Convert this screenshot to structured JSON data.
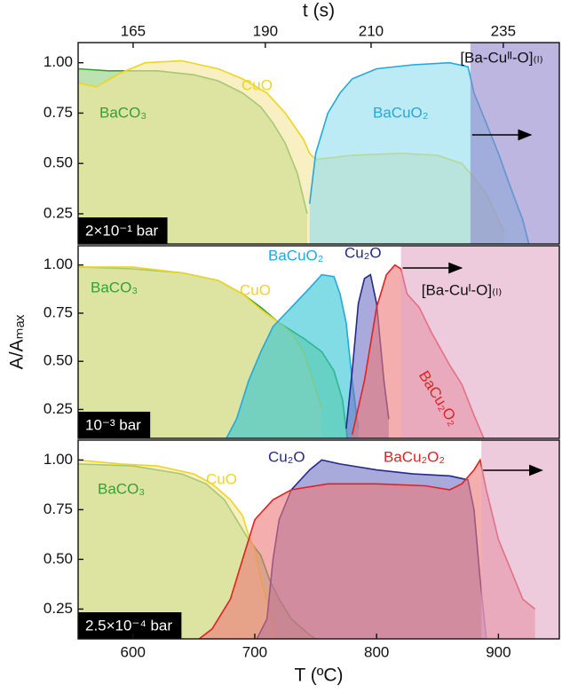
{
  "chart_data": [
    {
      "type": "area",
      "x2label": "t (s)",
      "x2lim": [
        154.6,
        245.6
      ],
      "x2ticks": [
        165,
        190,
        210,
        235
      ],
      "xlim": [
        555,
        950
      ],
      "ylim": [
        0.1,
        1.1
      ],
      "yticks": [
        0.25,
        {
          "value": 0.5,
          "label": "0.50"
        },
        0.75,
        {
          "value": 1,
          "label": "1.00"
        }
      ],
      "annotation": "2×10⁻¹ bar",
      "region": {
        "label": "[Ba-Cuᴵᴵ-O]₍ₗ₎",
        "start": 877,
        "color": "#8f86cc"
      },
      "series": [
        {
          "name": "BaCO₃",
          "color": "#34a034",
          "fill": "#8fd17a",
          "x": [
            555,
            580,
            620,
            650,
            670,
            690,
            705,
            715,
            725,
            735,
            743
          ],
          "values": [
            0.97,
            0.96,
            0.96,
            0.94,
            0.91,
            0.85,
            0.78,
            0.7,
            0.6,
            0.45,
            0.25
          ]
        },
        {
          "name": "CuO",
          "color": "#f0d420",
          "fill": "#f3e59a",
          "x": [
            555,
            570,
            590,
            610,
            640,
            670,
            690,
            710,
            725,
            740,
            745,
            750,
            780,
            820,
            850,
            870,
            880,
            890,
            900,
            905
          ],
          "values": [
            0.9,
            0.88,
            0.95,
            1.0,
            1.01,
            0.97,
            0.92,
            0.85,
            0.75,
            0.62,
            0.55,
            0.52,
            0.54,
            0.55,
            0.54,
            0.5,
            0.43,
            0.35,
            0.22,
            0.15
          ]
        },
        {
          "name": "BaCuO₂",
          "color": "#24a8dc",
          "fill": "#8fdcef",
          "x": [
            745,
            750,
            760,
            770,
            780,
            800,
            830,
            860,
            875,
            880,
            890,
            900,
            910,
            920,
            925
          ],
          "values": [
            0.3,
            0.55,
            0.75,
            0.85,
            0.92,
            0.97,
            0.99,
            1.0,
            0.98,
            0.85,
            0.7,
            0.55,
            0.38,
            0.22,
            0.1
          ]
        }
      ]
    },
    {
      "type": "area",
      "ylabel": "A/Aₘₐₓ",
      "xlim": [
        555,
        950
      ],
      "ylim": [
        0.1,
        1.1
      ],
      "yticks": [
        0.25,
        {
          "value": 0.5,
          "label": "0.50"
        },
        0.75,
        {
          "value": 1,
          "label": "1.00"
        }
      ],
      "annotation": "10⁻³ bar",
      "region": {
        "label": "[Ba-Cuᴵ-O]₍ₗ₎",
        "start": 820,
        "color": "#e3a6c6"
      },
      "series": [
        {
          "name": "BaCO₃",
          "color": "#34a034",
          "fill": "#8fd17a",
          "x": [
            555,
            600,
            640,
            670,
            690,
            705,
            720,
            740,
            755,
            765,
            772,
            776
          ],
          "values": [
            0.99,
            0.98,
            0.96,
            0.92,
            0.85,
            0.78,
            0.7,
            0.62,
            0.55,
            0.45,
            0.3,
            0.1
          ]
        },
        {
          "name": "CuO",
          "color": "#f0d420",
          "fill": "#f3e59a",
          "x": [
            555,
            600,
            640,
            670,
            690,
            705,
            720,
            730,
            740,
            748,
            755
          ],
          "values": [
            0.99,
            0.99,
            0.96,
            0.92,
            0.85,
            0.77,
            0.7,
            0.65,
            0.55,
            0.4,
            0.25
          ]
        },
        {
          "name": "BaCuO₂",
          "color": "#24a8dc",
          "fill": "#2ec4d4",
          "x": [
            675,
            685,
            695,
            705,
            715,
            730,
            745,
            755,
            765,
            770,
            775,
            780,
            785
          ],
          "values": [
            0.08,
            0.2,
            0.4,
            0.55,
            0.68,
            0.78,
            0.88,
            0.95,
            0.94,
            0.85,
            0.7,
            0.4,
            0.15
          ]
        },
        {
          "name": "Cu₂O",
          "color": "#232a8c",
          "fill": "#6f72c4",
          "x": [
            775,
            780,
            785,
            790,
            795,
            800,
            803,
            806,
            810
          ],
          "values": [
            0.15,
            0.45,
            0.8,
            0.93,
            0.95,
            0.8,
            0.6,
            0.4,
            0.2
          ]
        },
        {
          "name": "BaCu₂O₂",
          "color": "#e02222",
          "fill": "#ef7878",
          "x": [
            780,
            790,
            800,
            808,
            815,
            820,
            825,
            835,
            845,
            860,
            870,
            880,
            888
          ],
          "values": [
            0.12,
            0.4,
            0.78,
            0.95,
            1.0,
            0.98,
            0.85,
            0.78,
            0.65,
            0.48,
            0.38,
            0.22,
            0.1
          ]
        }
      ]
    },
    {
      "type": "area",
      "xlabel": "T (ºC)",
      "xlim": [
        555,
        950
      ],
      "ylim": [
        0.1,
        1.1
      ],
      "xticks": [
        600,
        700,
        800,
        900
      ],
      "yticks": [
        0.25,
        {
          "value": 0.5,
          "label": "0.50"
        },
        0.75,
        {
          "value": 1,
          "label": "1.00"
        }
      ],
      "annotation": "2.5×10⁻⁴ bar",
      "region": {
        "start": 886,
        "color": "#e3a6c6"
      },
      "series": [
        {
          "name": "BaCO₃",
          "color": "#34a034",
          "fill": "#8fd17a",
          "x": [
            555,
            600,
            640,
            660,
            675,
            685,
            695,
            705,
            712,
            720,
            730,
            745,
            755
          ],
          "values": [
            0.98,
            0.97,
            0.93,
            0.88,
            0.8,
            0.7,
            0.6,
            0.52,
            0.4,
            0.3,
            0.2,
            0.12,
            0.08
          ]
        },
        {
          "name": "CuO",
          "color": "#f0d420",
          "fill": "#f3e59a",
          "x": [
            555,
            590,
            620,
            650,
            665,
            680,
            690,
            695,
            700,
            705,
            712,
            718
          ],
          "values": [
            1.0,
            0.98,
            0.97,
            0.93,
            0.88,
            0.8,
            0.72,
            0.62,
            0.55,
            0.4,
            0.25,
            0.1
          ]
        },
        {
          "name": "Cu₂O",
          "color": "#232a8c",
          "fill": "#6f72c4",
          "x": [
            700,
            710,
            715,
            720,
            730,
            745,
            755,
            770,
            800,
            830,
            860,
            875,
            880,
            885,
            890
          ],
          "values": [
            0.08,
            0.2,
            0.5,
            0.7,
            0.85,
            0.95,
            1.0,
            0.98,
            0.95,
            0.93,
            0.92,
            0.9,
            0.75,
            0.4,
            0.1
          ]
        },
        {
          "name": "BaCu₂O₂",
          "color": "#e02222",
          "fill": "#ef7878",
          "x": [
            650,
            665,
            680,
            690,
            700,
            715,
            730,
            760,
            800,
            840,
            860,
            870,
            880,
            885,
            890,
            900,
            910,
            920,
            930
          ],
          "values": [
            0.08,
            0.15,
            0.3,
            0.5,
            0.7,
            0.8,
            0.85,
            0.88,
            0.88,
            0.87,
            0.85,
            0.88,
            0.95,
            1.0,
            0.85,
            0.6,
            0.45,
            0.3,
            0.25
          ]
        }
      ]
    }
  ]
}
